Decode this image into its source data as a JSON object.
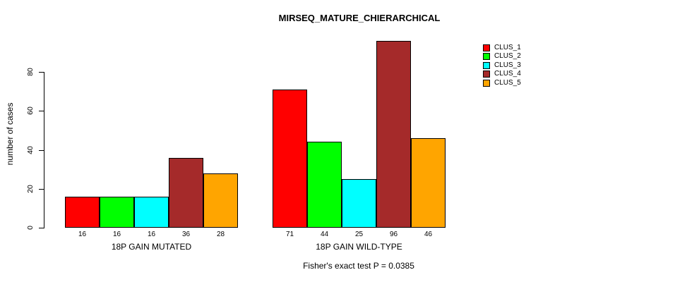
{
  "chart_data": {
    "type": "bar",
    "title": "MIRSEQ_MATURE_CHIERARCHICAL",
    "ylabel": "number of cases",
    "xlabel": "",
    "categories": [
      "18P GAIN MUTATED",
      "18P GAIN WILD-TYPE"
    ],
    "series": [
      {
        "name": "CLUS_1",
        "color": "#FF0000",
        "values": [
          16,
          71
        ]
      },
      {
        "name": "CLUS_2",
        "color": "#00FF00",
        "values": [
          16,
          44
        ]
      },
      {
        "name": "CLUS_3",
        "color": "#00FFFF",
        "values": [
          16,
          25
        ]
      },
      {
        "name": "CLUS_4",
        "color": "#A52A2A",
        "values": [
          36,
          96
        ]
      },
      {
        "name": "CLUS_5",
        "color": "#FFA500",
        "values": [
          28,
          46
        ]
      }
    ],
    "bar_value_labels": [
      [
        16,
        16,
        16,
        36,
        28
      ],
      [
        71,
        44,
        25,
        96,
        46
      ]
    ],
    "yticks": [
      0,
      20,
      40,
      60,
      80
    ],
    "ylim": [
      0,
      97
    ],
    "grid": false,
    "legend_position": "right",
    "legend_entries": [
      "CLUS_1",
      "CLUS_2",
      "CLUS_3",
      "CLUS_4",
      "CLUS_5"
    ],
    "annotation": "Fisher's exact test P = 0.0385",
    "bar_border_color": "#000000",
    "axis_color": "#000000",
    "background_color": "#FFFFFF",
    "text_color": "#000000"
  }
}
